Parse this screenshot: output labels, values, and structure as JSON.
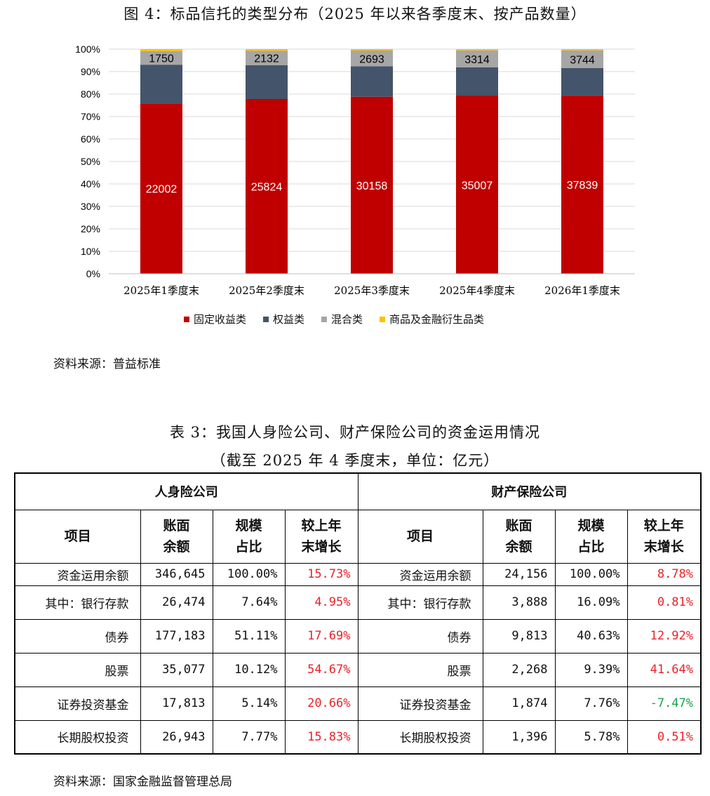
{
  "figure": {
    "title": "图 4：标品信托的类型分布（2025 年以来各季度末、按产品数量）",
    "source": "资料来源：普益标准"
  },
  "chart_data": {
    "type": "bar",
    "stacked": "percent",
    "categories": [
      "2025年1季度末",
      "2025年2季度末",
      "2025年3季度末",
      "2025年4季度末",
      "2026年1季度末"
    ],
    "series": [
      {
        "name": "固定收益类",
        "color": "#c00000",
        "values": [
          22002,
          25824,
          30158,
          35007,
          37839
        ]
      },
      {
        "name": "权益类",
        "color": "#44546a",
        "values": [
          5000,
          5000,
          5170,
          5620,
          5860
        ]
      },
      {
        "name": "混合类",
        "color": "#a6a6a6",
        "values": [
          1750,
          2132,
          2693,
          3314,
          3744
        ]
      },
      {
        "name": "商品及金融衍生品类",
        "color": "#ffc000",
        "values": [
          260,
          230,
          240,
          250,
          260
        ]
      }
    ],
    "data_labels": {
      "固定收益类": [
        "22002",
        "25824",
        "30158",
        "35007",
        "37839"
      ],
      "混合类": [
        "1750",
        "2132",
        "2693",
        "3314",
        "3744"
      ]
    },
    "y_ticks": [
      "0%",
      "10%",
      "20%",
      "30%",
      "40%",
      "50%",
      "60%",
      "70%",
      "80%",
      "90%",
      "100%"
    ],
    "ylim": [
      0,
      100
    ],
    "grid": true,
    "legend_position": "bottom"
  },
  "table": {
    "title_line1": "表 3：我国人身险公司、财产保险公司的资金运用情况",
    "title_line2": "（截至 2025 年 4 季度末，单位：亿元）",
    "group_left": "人身险公司",
    "group_right": "财产保险公司",
    "headers": {
      "item": "项目",
      "book_1": "账面",
      "book_2": "余额",
      "scale_1": "规模",
      "scale_2": "占比",
      "growth_1": "较上年",
      "growth_2": "末增长"
    },
    "rows": [
      {
        "label": "资金运用余额",
        "l_bal": "346,645",
        "l_pct": "100.00%",
        "l_gr": "15.73%",
        "r_bal": "24,156",
        "r_pct": "100.00%",
        "r_gr": "8.78%"
      },
      {
        "label": "其中：银行存款",
        "l_bal": "26,474",
        "l_pct": "7.64%",
        "l_gr": "4.95%",
        "r_bal": "3,888",
        "r_pct": "16.09%",
        "r_gr": "0.81%"
      },
      {
        "label": "债券",
        "l_bal": "177,183",
        "l_pct": "51.11%",
        "l_gr": "17.69%",
        "r_bal": "9,813",
        "r_pct": "40.63%",
        "r_gr": "12.92%"
      },
      {
        "label": "股票",
        "l_bal": "35,077",
        "l_pct": "10.12%",
        "l_gr": "54.67%",
        "r_bal": "2,268",
        "r_pct": "9.39%",
        "r_gr": "41.64%"
      },
      {
        "label": "证券投资基金",
        "l_bal": "17,813",
        "l_pct": "5.14%",
        "l_gr": "20.66%",
        "r_bal": "1,874",
        "r_pct": "7.76%",
        "r_gr": "-7.47%"
      },
      {
        "label": "长期股权投资",
        "l_bal": "26,943",
        "l_pct": "7.77%",
        "l_gr": "15.83%",
        "r_bal": "1,396",
        "r_pct": "5.78%",
        "r_gr": "0.51%"
      }
    ],
    "colors": {
      "positive": "#e8232a",
      "negative": "#1aa34a"
    },
    "source": "资料来源：国家金融监督管理总局"
  }
}
